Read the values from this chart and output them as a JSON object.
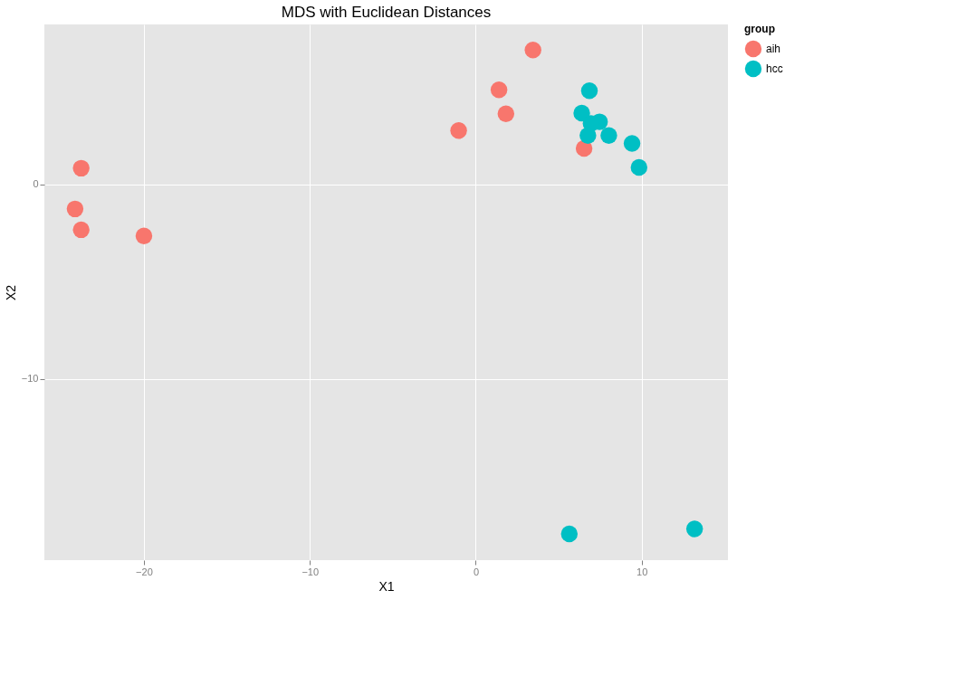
{
  "chart_data": {
    "type": "scatter",
    "title": "MDS with Euclidean Distances",
    "xlabel": "X1",
    "ylabel": "X2",
    "legend_title": "group",
    "xlim": [
      -26,
      15.2
    ],
    "ylim": [
      -19.3,
      8.2
    ],
    "xticks": [
      -20,
      -10,
      0,
      10
    ],
    "yticks": [
      -10,
      0
    ],
    "grid": true,
    "legend": "right",
    "marker": "circle",
    "series": [
      {
        "name": "aih",
        "color": "#f8766d",
        "x": [
          -23.78,
          -24.15,
          -23.78,
          -20.0,
          -1.03,
          1.4,
          1.82,
          3.45,
          6.53
        ],
        "values": [
          0.82,
          -1.27,
          -2.34,
          -2.66,
          2.75,
          4.84,
          3.61,
          6.89,
          1.84
        ]
      },
      {
        "name": "hcc",
        "color": "#00bfc4",
        "x": [
          6.85,
          6.39,
          7.46,
          6.95,
          6.76,
          8.02,
          9.42,
          9.84,
          5.64,
          13.19
        ],
        "values": [
          4.8,
          3.65,
          3.2,
          3.11,
          2.5,
          2.5,
          2.09,
          0.86,
          -17.95,
          -17.7
        ]
      }
    ]
  }
}
